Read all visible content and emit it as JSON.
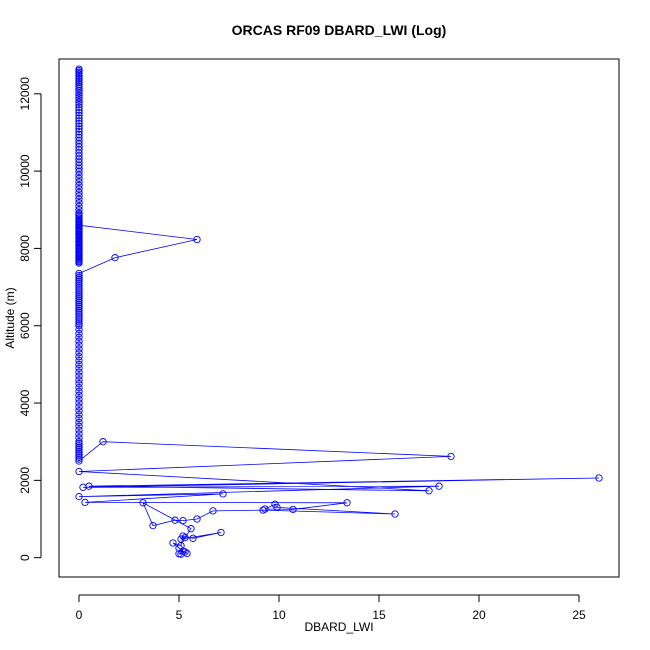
{
  "chart_data": {
    "type": "line",
    "title": "ORCAS RF09 DBARD_LWI (Log)",
    "xlabel": "DBARD_LWI",
    "ylabel": "Altitude (m)",
    "xlim": [
      -1,
      27
    ],
    "ylim": [
      -500,
      12900
    ],
    "xticks": [
      0,
      5,
      10,
      15,
      20,
      25
    ],
    "yticks": [
      0,
      2000,
      4000,
      6000,
      8000,
      10000,
      12000
    ],
    "xtick_labels": [
      "0",
      "5",
      "10",
      "15",
      "20",
      "25"
    ],
    "ytick_labels": [
      "0",
      "2000",
      "4000",
      "6000",
      "8000",
      "10000",
      "12000"
    ],
    "grid": false,
    "legend": false,
    "series_color": "#0000ff",
    "series": [
      {
        "x": [
          0,
          0,
          0,
          0,
          0,
          0,
          0,
          0,
          0,
          0,
          0,
          0,
          0,
          0,
          0,
          0,
          0,
          0,
          0,
          0,
          0,
          0,
          0,
          0,
          0,
          0,
          0,
          0,
          0,
          0,
          0,
          0,
          0,
          0,
          0,
          0,
          0,
          0,
          0,
          0,
          0,
          0,
          0,
          0,
          0,
          0,
          0,
          0,
          0,
          0,
          0,
          0,
          0,
          0,
          0,
          0,
          0,
          0,
          0,
          0,
          0,
          0,
          0,
          0,
          0,
          0,
          0,
          0,
          0,
          0,
          0,
          0,
          0,
          0,
          0,
          0,
          0,
          0,
          0,
          0,
          0,
          0,
          0,
          0,
          0,
          0,
          0,
          0,
          0,
          0,
          0,
          0,
          0,
          0,
          0,
          5.9,
          1.8,
          0,
          0,
          0,
          0,
          0,
          0,
          0,
          0,
          0,
          0,
          0,
          0,
          0,
          0,
          0,
          0,
          0,
          0,
          0,
          0,
          0,
          0,
          0,
          0,
          0,
          0,
          0,
          0,
          0,
          0,
          0,
          0,
          0,
          0,
          0,
          0,
          0,
          0,
          0,
          0,
          0,
          0,
          0,
          0,
          0,
          0,
          0,
          0,
          0,
          0,
          0,
          0,
          0,
          0,
          0,
          0,
          0,
          0,
          0,
          0,
          0,
          0,
          0,
          0,
          0,
          0,
          0,
          0,
          1.2,
          18.6,
          0,
          17.5,
          0.5,
          26,
          0.2,
          18,
          0,
          7.2,
          0.3,
          13.4,
          10.7,
          9.3,
          9.8,
          9.9,
          15.8,
          9.2,
          6.7,
          5.9,
          5.2,
          4.8,
          3.7,
          3.2,
          5.6,
          5.3,
          5.1,
          7.1,
          5.7,
          5.2,
          5.1,
          4.7,
          5.0,
          5.2,
          5.4,
          5.3,
          5.0,
          5.1
        ],
        "y": [
          12640,
          12600,
          12560,
          12520,
          12470,
          12420,
          12380,
          12330,
          12290,
          12240,
          12190,
          12140,
          12080,
          12020,
          11960,
          11900,
          11840,
          11780,
          11720,
          11650,
          11580,
          11510,
          11440,
          11370,
          11300,
          11230,
          11160,
          11090,
          11020,
          10950,
          10870,
          10790,
          10710,
          10630,
          10550,
          10470,
          10390,
          10310,
          10230,
          10150,
          10070,
          9990,
          9900,
          9810,
          9720,
          9630,
          9540,
          9450,
          9360,
          9270,
          9180,
          9090,
          9000,
          8910,
          8870,
          8830,
          8790,
          8750,
          8720,
          8690,
          8660,
          8630,
          8590,
          8550,
          8510,
          8480,
          8450,
          8420,
          8390,
          8360,
          8330,
          8300,
          8270,
          8240,
          8210,
          8180,
          8150,
          8120,
          8090,
          8060,
          8030,
          8000,
          7970,
          7930,
          7900,
          7870,
          7830,
          7800,
          7770,
          7740,
          7710,
          7680,
          7650,
          7620,
          8600,
          8230,
          7760,
          7350,
          7300,
          7250,
          7200,
          7150,
          7100,
          7050,
          7000,
          6950,
          6900,
          6850,
          6800,
          6750,
          6700,
          6650,
          6600,
          6550,
          6500,
          6450,
          6400,
          6350,
          6300,
          6250,
          6200,
          6150,
          6100,
          6050,
          6000,
          5900,
          5800,
          5700,
          5600,
          5500,
          5400,
          5300,
          5200,
          5100,
          5000,
          4900,
          4800,
          4700,
          4600,
          4500,
          4400,
          4300,
          4200,
          4100,
          4000,
          3900,
          3800,
          3700,
          3600,
          3500,
          3400,
          3300,
          3200,
          3100,
          3000,
          2950,
          2900,
          2850,
          2800,
          2750,
          2700,
          2650,
          2600,
          2550,
          2500,
          3000,
          2620,
          2230,
          1730,
          1850,
          2060,
          1820,
          1850,
          1580,
          1650,
          1430,
          1420,
          1250,
          1260,
          1380,
          1300,
          1130,
          1230,
          1210,
          1000,
          960,
          970,
          830,
          1420,
          750,
          520,
          480,
          650,
          500,
          560,
          310,
          380,
          250,
          170,
          110,
          150,
          100,
          90
        ]
      }
    ]
  }
}
